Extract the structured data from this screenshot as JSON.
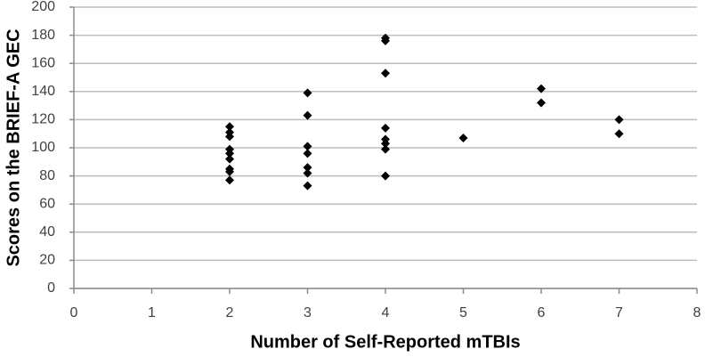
{
  "chart_data": {
    "type": "scatter",
    "x_label": "Number of Self-Reported mTBIs",
    "y_label": "Scores on the BRIEF-A GEC",
    "x": [
      2,
      2,
      2,
      2,
      2,
      2,
      2,
      2,
      2,
      3,
      3,
      3,
      3,
      3,
      3,
      3,
      4,
      4,
      4,
      4,
      4,
      4,
      4,
      4,
      5,
      6,
      6,
      7,
      7
    ],
    "values": [
      115,
      111,
      108,
      99,
      96,
      92,
      85,
      83,
      77,
      139,
      123,
      101,
      96,
      86,
      82,
      73,
      178,
      176,
      153,
      114,
      106,
      103,
      99,
      80,
      107,
      142,
      132,
      120,
      110
    ],
    "color": "#000000",
    "marker": "diamond",
    "xlim": [
      0,
      8
    ],
    "xticks": [
      0,
      1,
      2,
      3,
      4,
      5,
      6,
      7,
      8
    ],
    "ylim": [
      0,
      200
    ],
    "yticks": [
      0,
      20,
      40,
      60,
      80,
      100,
      120,
      140,
      160,
      180,
      200
    ],
    "grid": true
  }
}
